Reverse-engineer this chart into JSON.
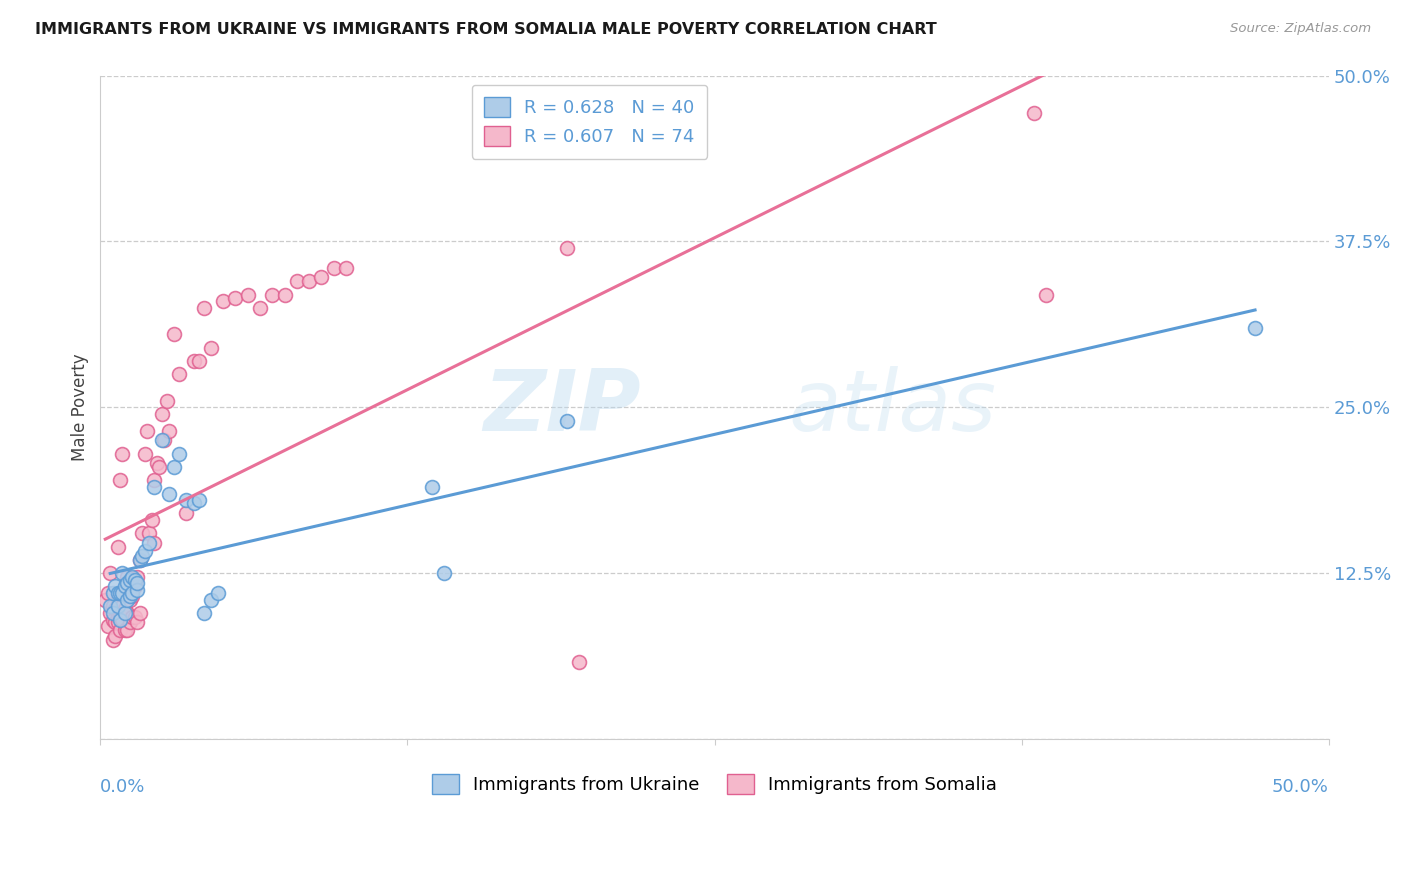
{
  "title": "IMMIGRANTS FROM UKRAINE VS IMMIGRANTS FROM SOMALIA MALE POVERTY CORRELATION CHART",
  "source": "Source: ZipAtlas.com",
  "ylabel": "Male Poverty",
  "xlim": [
    0.0,
    0.5
  ],
  "ylim": [
    0.0,
    0.5
  ],
  "ukraine_face": "#aecce8",
  "ukraine_edge": "#5b9bd5",
  "somalia_face": "#f5b8cb",
  "somalia_edge": "#e06090",
  "ukraine_line": "#5b9bd5",
  "somalia_line": "#e87098",
  "tick_color": "#5b9bd5",
  "grid_color": "#cccccc",
  "bg_color": "#ffffff",
  "ukraine_R": "0.628",
  "ukraine_N": "40",
  "somalia_R": "0.607",
  "somalia_N": "74",
  "watermark_zip": "ZIP",
  "watermark_atlas": "atlas",
  "ukraine_x": [
    0.004,
    0.005,
    0.005,
    0.006,
    0.007,
    0.007,
    0.008,
    0.008,
    0.009,
    0.009,
    0.01,
    0.01,
    0.011,
    0.011,
    0.012,
    0.012,
    0.013,
    0.013,
    0.014,
    0.015,
    0.015,
    0.016,
    0.017,
    0.018,
    0.02,
    0.022,
    0.025,
    0.028,
    0.03,
    0.032,
    0.035,
    0.038,
    0.04,
    0.042,
    0.045,
    0.048,
    0.135,
    0.14,
    0.19,
    0.47
  ],
  "ukraine_y": [
    0.1,
    0.095,
    0.11,
    0.115,
    0.1,
    0.11,
    0.11,
    0.09,
    0.11,
    0.125,
    0.095,
    0.115,
    0.105,
    0.118,
    0.108,
    0.12,
    0.11,
    0.122,
    0.12,
    0.112,
    0.118,
    0.135,
    0.138,
    0.142,
    0.148,
    0.19,
    0.225,
    0.185,
    0.205,
    0.215,
    0.18,
    0.178,
    0.18,
    0.095,
    0.105,
    0.11,
    0.19,
    0.125,
    0.24,
    0.31
  ],
  "somalia_x": [
    0.002,
    0.003,
    0.003,
    0.004,
    0.004,
    0.005,
    0.005,
    0.005,
    0.006,
    0.006,
    0.006,
    0.007,
    0.007,
    0.007,
    0.007,
    0.008,
    0.008,
    0.008,
    0.008,
    0.009,
    0.009,
    0.009,
    0.01,
    0.01,
    0.01,
    0.011,
    0.011,
    0.011,
    0.012,
    0.012,
    0.013,
    0.013,
    0.013,
    0.014,
    0.014,
    0.015,
    0.015,
    0.016,
    0.016,
    0.017,
    0.018,
    0.019,
    0.02,
    0.021,
    0.022,
    0.022,
    0.023,
    0.024,
    0.025,
    0.026,
    0.027,
    0.028,
    0.03,
    0.032,
    0.035,
    0.038,
    0.04,
    0.042,
    0.045,
    0.05,
    0.055,
    0.06,
    0.065,
    0.07,
    0.075,
    0.08,
    0.085,
    0.09,
    0.095,
    0.1,
    0.19,
    0.195,
    0.38,
    0.385
  ],
  "somalia_y": [
    0.105,
    0.085,
    0.11,
    0.095,
    0.125,
    0.075,
    0.09,
    0.1,
    0.078,
    0.088,
    0.098,
    0.092,
    0.105,
    0.145,
    0.088,
    0.082,
    0.093,
    0.102,
    0.195,
    0.09,
    0.1,
    0.215,
    0.082,
    0.098,
    0.108,
    0.082,
    0.095,
    0.122,
    0.088,
    0.105,
    0.092,
    0.108,
    0.118,
    0.092,
    0.115,
    0.088,
    0.122,
    0.095,
    0.135,
    0.155,
    0.215,
    0.232,
    0.155,
    0.165,
    0.148,
    0.195,
    0.208,
    0.205,
    0.245,
    0.225,
    0.255,
    0.232,
    0.305,
    0.275,
    0.17,
    0.285,
    0.285,
    0.325,
    0.295,
    0.33,
    0.332,
    0.335,
    0.325,
    0.335,
    0.335,
    0.345,
    0.345,
    0.348,
    0.355,
    0.355,
    0.37,
    0.058,
    0.472,
    0.335
  ]
}
